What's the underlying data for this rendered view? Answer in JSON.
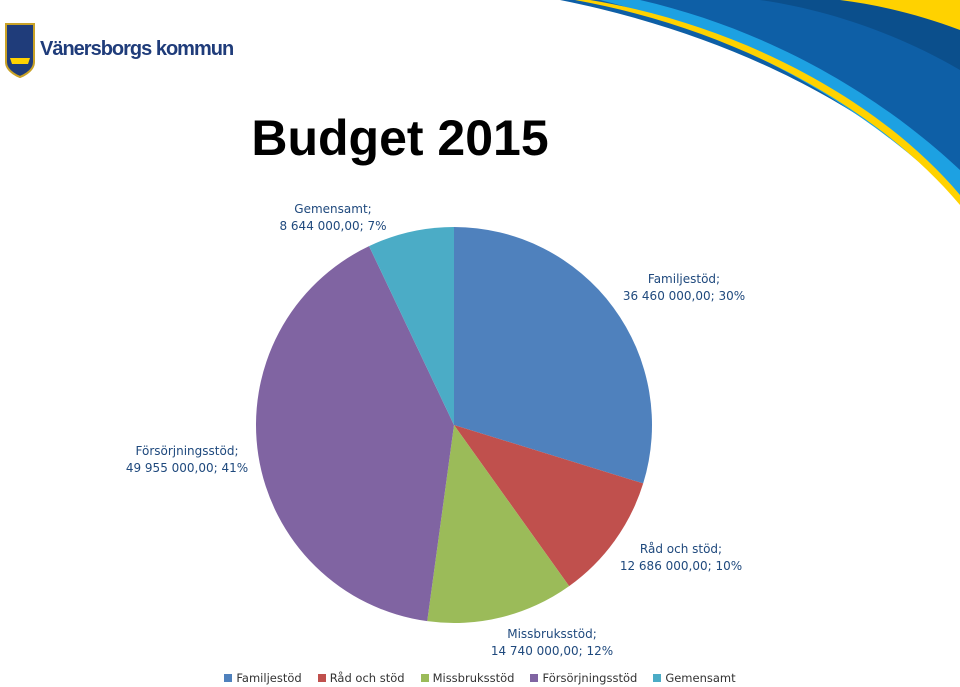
{
  "header": {
    "organization": "Vänersborgs kommun"
  },
  "chart_data": {
    "type": "pie",
    "title": "Budget 2015",
    "categories": [
      "Familjestöd",
      "Råd och stöd",
      "Missbruksstöd",
      "Försörjningsstöd",
      "Gemensamt"
    ],
    "values": [
      36460000,
      12686000,
      14740000,
      49955000,
      8644000
    ],
    "value_labels": [
      "Familjestöd;\n36 460 000,00; 30%",
      "Råd och stöd;\n12 686 000,00; 10%",
      "Missbruksstöd;\n14 740 000,00; 12%",
      "Försörjningsstöd;\n49 955 000,00; 41%",
      "Gemensamt;\n8 644 000,00; 7%"
    ],
    "colors": [
      "#4F81BD",
      "#C0504D",
      "#9BBB59",
      "#8064A2",
      "#4BACC6"
    ],
    "legend": "bottom"
  }
}
